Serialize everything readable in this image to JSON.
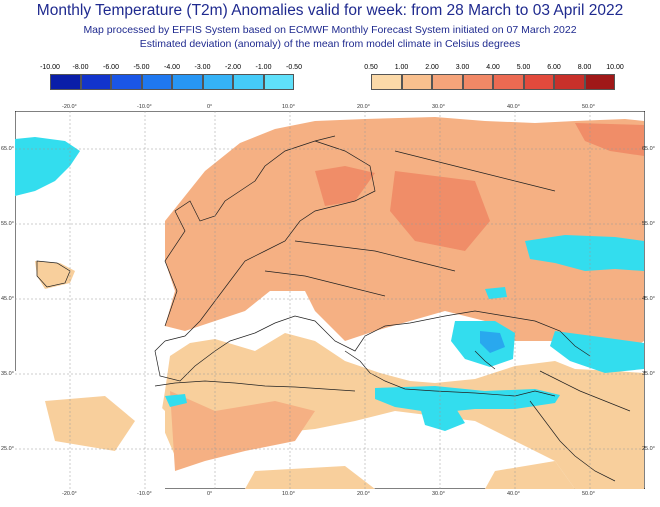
{
  "header": {
    "title": "Monthly Temperature (T2m) Anomalies valid for week: from 28 March to 03 April 2022",
    "subtitle1": "Map processed by EFFIS System based on ECMWF Monthly Forecast System initiated on 07 March 2022",
    "subtitle2": "Estimated deviation (anomaly) of the mean from model climate in Celsius degrees"
  },
  "legend": {
    "cold": {
      "labels": [
        "-10.00",
        "-8.00",
        "-6.00",
        "-5.00",
        "-4.00",
        "-3.00",
        "-2.00",
        "-1.00",
        "-0.50"
      ],
      "colors": [
        "#0a1ea8",
        "#1234cc",
        "#1a56e6",
        "#1f78f0",
        "#2796f4",
        "#35b2f6",
        "#45cbf8",
        "#5fe0fa"
      ]
    },
    "warm": {
      "labels": [
        "0.50",
        "1.00",
        "2.00",
        "3.00",
        "4.00",
        "5.00",
        "6.00",
        "8.00",
        "10.00"
      ],
      "colors": [
        "#fbd9a8",
        "#f9c08e",
        "#f5a47a",
        "#f18866",
        "#ec6a52",
        "#e24a3c",
        "#c8302a",
        "#a01818"
      ]
    }
  },
  "map": {
    "lon_ticks": [
      "-20.0°",
      "-10.0°",
      "0°",
      "10.0°",
      "20.0°",
      "30.0°",
      "40.0°",
      "50.0°"
    ],
    "lat_ticks": [
      "65.0°",
      "55.0°",
      "45.0°",
      "35.0°",
      "25.0°"
    ],
    "colors": {
      "land_warm_light": "#f8cf9c",
      "land_warm": "#f5b083",
      "land_warm_strong": "#f08d68",
      "cold": "#33ddee",
      "cold_strong": "#29a8ee",
      "grid": "#888888",
      "coast": "#222222"
    }
  }
}
